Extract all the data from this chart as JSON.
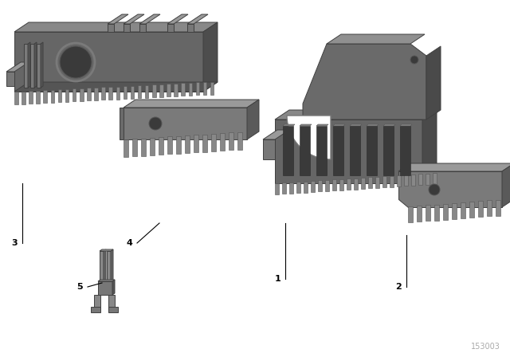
{
  "background_color": "#ffffff",
  "catalog_number": "153003",
  "figsize": [
    6.4,
    4.48
  ],
  "dpi": 100,
  "gray_main": "#6e6e6e",
  "gray_top": "#8a8a8a",
  "gray_side": "#555555",
  "gray_light": "#919191",
  "gray_teeth": "#888888",
  "gray_dark": "#3a3a3a",
  "gray_insert": "#7a7a7a",
  "gray_insert_top": "#9a9a9a"
}
